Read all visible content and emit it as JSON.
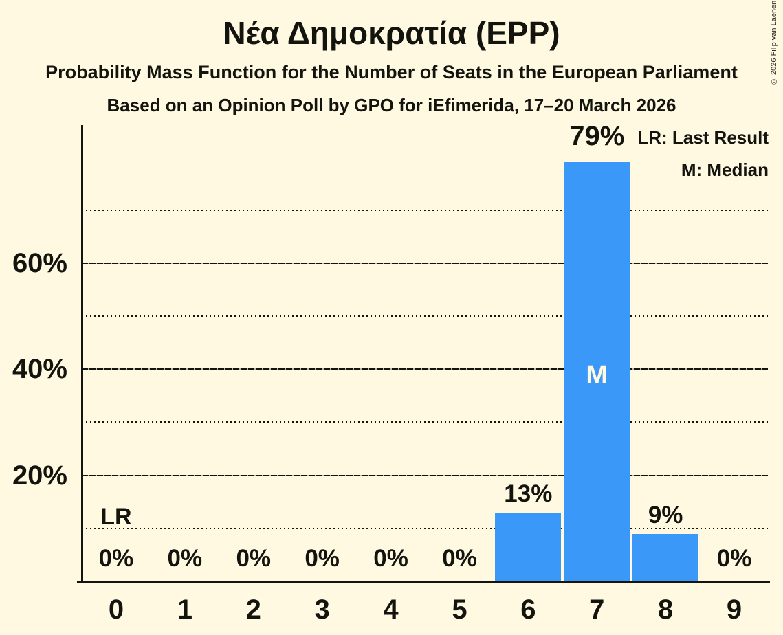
{
  "title": "Νέα Δημοκρατία (EPP)",
  "subtitle": "Probability Mass Function for the Number of Seats in the European Parliament",
  "poll_line": "Based on an Opinion Poll by GPO for iEfimerida, 17–20 March 2026",
  "copyright": "© 2026 Filip van Laenen",
  "legend": {
    "lr_label": "LR: Last Result",
    "m_label": "M: Median"
  },
  "chart_data": {
    "type": "bar",
    "title": "Νέα Δημοκρατία (EPP)",
    "categories": [
      "0",
      "1",
      "2",
      "3",
      "4",
      "5",
      "6",
      "7",
      "8",
      "9"
    ],
    "values": [
      0,
      0,
      0,
      0,
      0,
      0,
      13,
      79,
      9,
      0
    ],
    "bar_labels": [
      "0%",
      "0%",
      "0%",
      "0%",
      "0%",
      "0%",
      "13%",
      "79%",
      "9%",
      "0%"
    ],
    "xlabel": "",
    "ylabel": "",
    "ylim": [
      0,
      86
    ],
    "yticks": [
      {
        "value": 20,
        "label": "20%"
      },
      {
        "value": 40,
        "label": "40%"
      },
      {
        "value": 60,
        "label": "60%"
      }
    ],
    "grid": {
      "solid_lines_percent": [
        20,
        40,
        60
      ],
      "dotted_lines_percent": [
        10,
        30,
        50,
        70
      ]
    },
    "annotations": {
      "median": {
        "text": "M",
        "category": "7"
      },
      "last_result": {
        "text": "LR",
        "category": "0",
        "line_percent": 10
      }
    },
    "legend_position": "top-right",
    "colors": {
      "bar": "#3a99f8",
      "background": "#fff9e1",
      "ink": "#14140e",
      "median_text": "#fff9e1"
    }
  }
}
